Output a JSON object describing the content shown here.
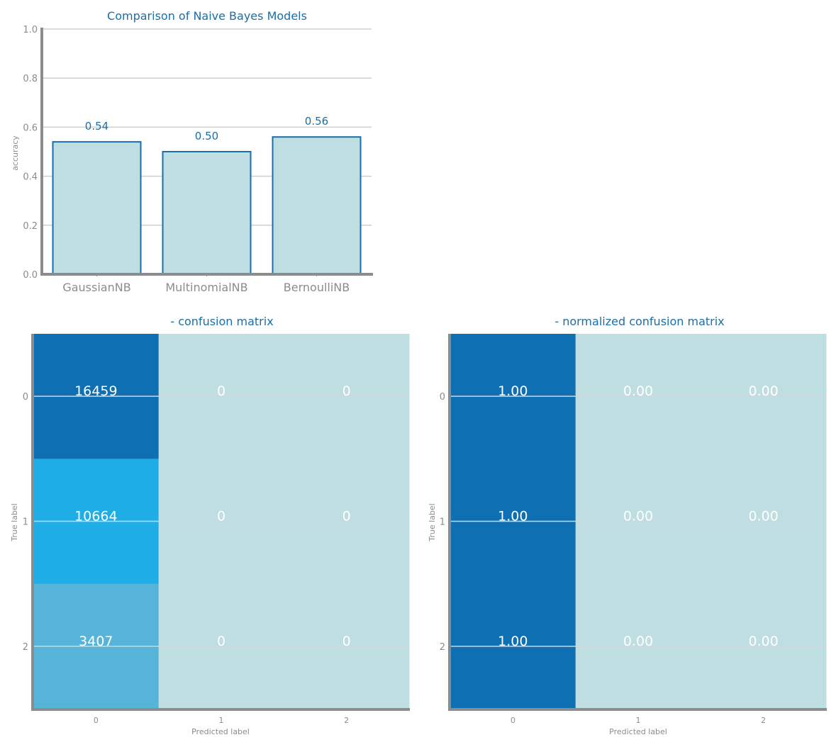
{
  "chart_data": [
    {
      "type": "bar",
      "title": "Comparison of Naive Bayes Models",
      "ylabel": "accuracy",
      "xlabel": "",
      "categories": [
        "GaussianNB",
        "MultinomialNB",
        "BernoulliNB"
      ],
      "values": [
        0.54,
        0.5,
        0.56
      ],
      "value_labels": [
        "0.54",
        "0.50",
        "0.56"
      ],
      "ylim": [
        0,
        1.0
      ],
      "yticks": [
        "0.0",
        "0.2",
        "0.4",
        "0.6",
        "0.8",
        "1.0"
      ],
      "grid": true,
      "colors": {
        "bar_fill": "#bfdee2",
        "bar_edge": "#1a6fa8",
        "grid": "#cfcfcf",
        "axis": "#8c8c8c",
        "text": "#1a6fa8"
      }
    },
    {
      "type": "heatmap",
      "title": "- confusion matrix",
      "xlabel": "Predicted label",
      "ylabel": "True label",
      "x_ticks": [
        "0",
        "1",
        "2"
      ],
      "y_ticks": [
        "0",
        "1",
        "2"
      ],
      "values": [
        [
          16459,
          0,
          0
        ],
        [
          10664,
          0,
          0
        ],
        [
          3407,
          0,
          0
        ]
      ],
      "labels": [
        [
          "16459",
          "0",
          "0"
        ],
        [
          "10664",
          "0",
          "0"
        ],
        [
          "3407",
          "0",
          "0"
        ]
      ],
      "colors": {
        "max": "#0e6fb3",
        "mid": "#1fade6",
        "low": "#57b4d9",
        "min": "#bfdee2"
      }
    },
    {
      "type": "heatmap",
      "title": "- normalized confusion matrix",
      "xlabel": "Predicted label",
      "ylabel": "True label",
      "x_ticks": [
        "0",
        "1",
        "2"
      ],
      "y_ticks": [
        "0",
        "1",
        "2"
      ],
      "values": [
        [
          1.0,
          0.0,
          0.0
        ],
        [
          1.0,
          0.0,
          0.0
        ],
        [
          1.0,
          0.0,
          0.0
        ]
      ],
      "labels": [
        [
          "1.00",
          "0.00",
          "0.00"
        ],
        [
          "1.00",
          "0.00",
          "0.00"
        ],
        [
          "1.00",
          "0.00",
          "0.00"
        ]
      ],
      "colors": {
        "max": "#0e6fb3",
        "min": "#bfdee2"
      }
    }
  ]
}
